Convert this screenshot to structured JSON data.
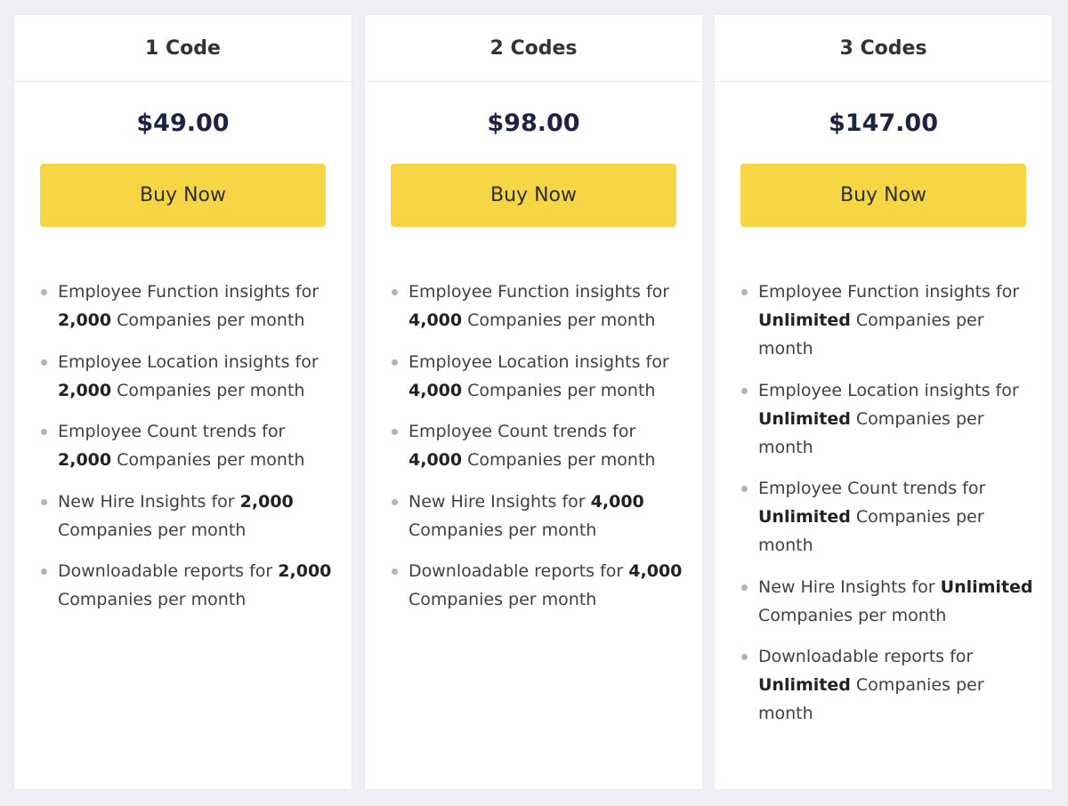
{
  "colors": {
    "page_bg": "#eef0f5",
    "button_bg": "#f7d645",
    "price_text": "#1b2440"
  },
  "plans": [
    {
      "title": "1 Code",
      "price": "$49.00",
      "button_label": "Buy Now",
      "features": [
        {
          "pre": "Employee Function insights for ",
          "strong": "2,000",
          "post": " Companies per month"
        },
        {
          "pre": "Employee Location insights for ",
          "strong": "2,000",
          "post": " Companies per month"
        },
        {
          "pre": "Employee Count trends for ",
          "strong": "2,000",
          "post": " Companies per month"
        },
        {
          "pre": "New Hire Insights for ",
          "strong": "2,000",
          "post": " Companies per month"
        },
        {
          "pre": "Downloadable reports for ",
          "strong": "2,000",
          "post": " Companies per month"
        }
      ]
    },
    {
      "title": "2 Codes",
      "price": "$98.00",
      "button_label": "Buy Now",
      "features": [
        {
          "pre": "Employee Function insights for ",
          "strong": "4,000",
          "post": " Companies per month"
        },
        {
          "pre": "Employee Location insights for ",
          "strong": "4,000",
          "post": " Companies per month"
        },
        {
          "pre": "Employee Count trends for ",
          "strong": "4,000",
          "post": " Companies per month"
        },
        {
          "pre": "New Hire Insights for ",
          "strong": "4,000",
          "post": " Companies per month"
        },
        {
          "pre": "Downloadable reports for ",
          "strong": "4,000",
          "post": " Companies per month"
        }
      ]
    },
    {
      "title": "3 Codes",
      "price": "$147.00",
      "button_label": "Buy Now",
      "features": [
        {
          "pre": "Employee Function insights for ",
          "strong": "Unlimited",
          "post": " Companies per month"
        },
        {
          "pre": "Employee Location insights for ",
          "strong": "Unlimited",
          "post": " Companies per month"
        },
        {
          "pre": "Employee Count trends for ",
          "strong": "Unlimited",
          "post": " Companies per month"
        },
        {
          "pre": "New Hire Insights for ",
          "strong": "Unlimited",
          "post": " Companies per month"
        },
        {
          "pre": "Downloadable reports for ",
          "strong": "Unlimited",
          "post": " Companies per month"
        }
      ]
    }
  ]
}
